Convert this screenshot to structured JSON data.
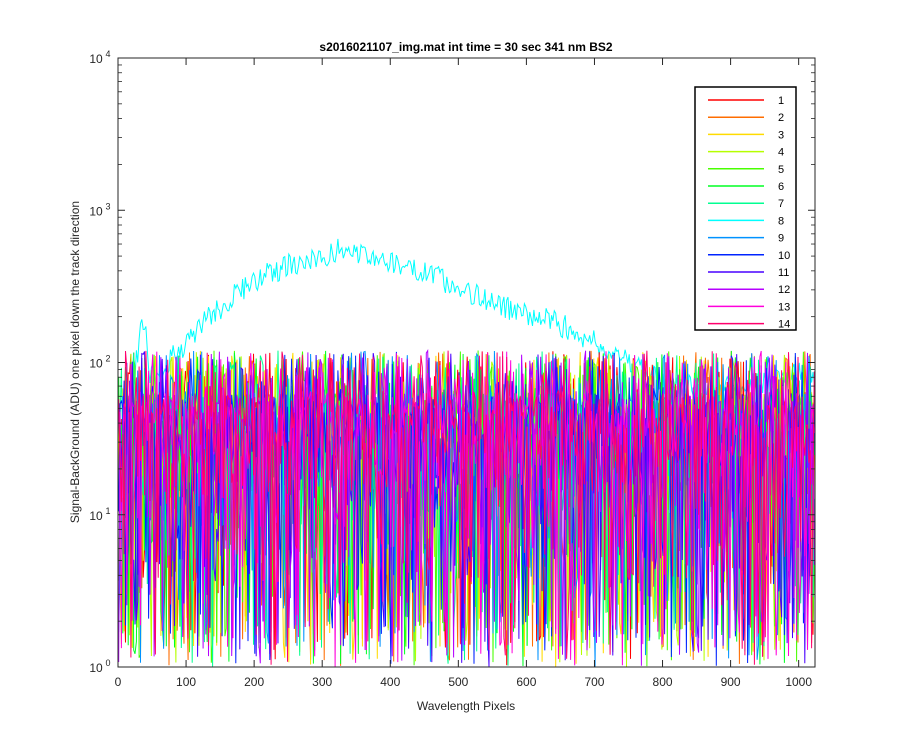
{
  "chart_data": {
    "type": "line",
    "title": "s2016021107_img.mat int time = 30 sec  341 nm BS2",
    "xlabel": "Wavelength Pixels",
    "ylabel": "Signal-BackGround (ADU) one pixel down the track direction",
    "xlim": [
      0,
      1024
    ],
    "ylim": [
      1,
      10000
    ],
    "yscale": "log",
    "x_ticks": [
      "0",
      "100",
      "200",
      "300",
      "400",
      "500",
      "600",
      "700",
      "800",
      "900",
      "1000"
    ],
    "y_ticks": [
      {
        "base": "10",
        "exp": "0"
      },
      {
        "base": "10",
        "exp": "1"
      },
      {
        "base": "10",
        "exp": "2"
      },
      {
        "base": "10",
        "exp": "3"
      },
      {
        "base": "10",
        "exp": "4"
      }
    ],
    "legend_position": "top-right",
    "noise_floor_series": {
      "description_range": [
        2,
        100
      ],
      "mean": 25
    },
    "series": [
      {
        "name": "1",
        "color": "#ff0000"
      },
      {
        "name": "2",
        "color": "#ff6d00"
      },
      {
        "name": "3",
        "color": "#ffdb00"
      },
      {
        "name": "4",
        "color": "#b6ff00"
      },
      {
        "name": "5",
        "color": "#49ff00"
      },
      {
        "name": "6",
        "color": "#00ff24"
      },
      {
        "name": "7",
        "color": "#00ff92"
      },
      {
        "name": "8",
        "color": "#00ffff",
        "peak_profile": {
          "x": [
            0,
            20,
            38,
            45,
            60,
            100,
            150,
            200,
            250,
            300,
            320,
            350,
            400,
            450,
            500,
            550,
            600,
            650,
            700,
            750,
            800,
            850,
            900,
            950,
            1000,
            1024
          ],
          "y": [
            30,
            40,
            200,
            80,
            90,
            130,
            230,
            350,
            440,
            490,
            560,
            510,
            470,
            400,
            310,
            250,
            210,
            180,
            140,
            100,
            75,
            70,
            72,
            75,
            85,
            80
          ]
        }
      },
      {
        "name": "9",
        "color": "#0092ff"
      },
      {
        "name": "10",
        "color": "#0024ff"
      },
      {
        "name": "11",
        "color": "#4900ff"
      },
      {
        "name": "12",
        "color": "#b600ff"
      },
      {
        "name": "13",
        "color": "#ff00db"
      },
      {
        "name": "14",
        "color": "#ff006d"
      }
    ]
  }
}
